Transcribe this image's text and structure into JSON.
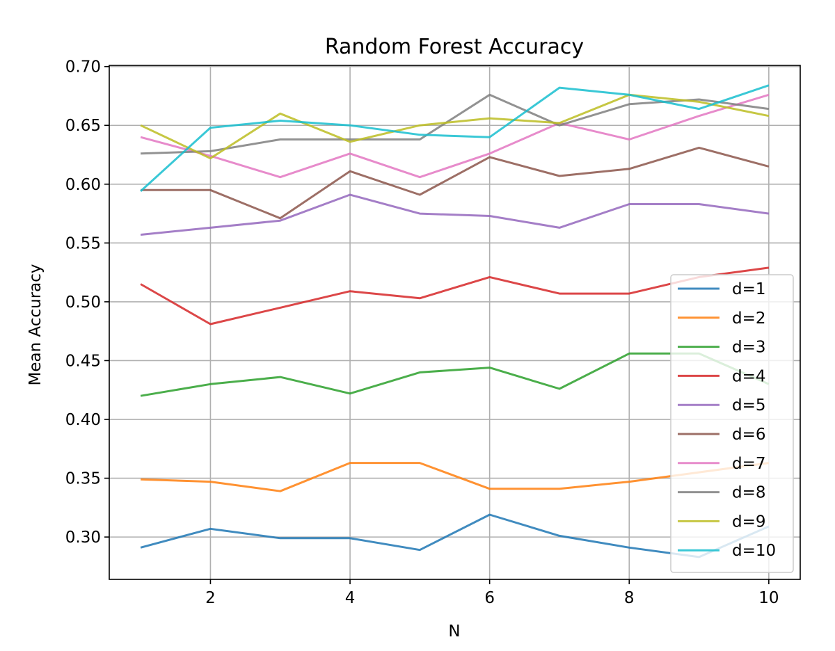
{
  "chart_data": {
    "type": "line",
    "title": "Random Forest Accuracy",
    "xlabel": "N",
    "ylabel": "Mean Accuracy",
    "xlim": [
      0.55,
      10.45
    ],
    "ylim": [
      0.264,
      0.701
    ],
    "xticks": [
      2,
      4,
      6,
      8,
      10
    ],
    "xtick_labels": [
      "2",
      "4",
      "6",
      "8",
      "10"
    ],
    "yticks": [
      0.3,
      0.35,
      0.4,
      0.45,
      0.5,
      0.55,
      0.6,
      0.65,
      0.7
    ],
    "ytick_labels": [
      "0.30",
      "0.35",
      "0.40",
      "0.45",
      "0.50",
      "0.55",
      "0.60",
      "0.65",
      "0.70"
    ],
    "grid": true,
    "legend_position": "lower-right",
    "x": [
      1,
      2,
      3,
      4,
      5,
      6,
      7,
      8,
      9,
      10
    ],
    "series": [
      {
        "name": "d=1",
        "color": "#1f77b4",
        "values": [
          0.291,
          0.307,
          0.299,
          0.299,
          0.289,
          0.319,
          0.301,
          0.291,
          0.283,
          0.309
        ]
      },
      {
        "name": "d=2",
        "color": "#ff7f0e",
        "values": [
          0.349,
          0.347,
          0.339,
          0.363,
          0.363,
          0.341,
          0.341,
          0.347,
          0.355,
          0.363
        ]
      },
      {
        "name": "d=3",
        "color": "#2ca02c",
        "values": [
          0.42,
          0.43,
          0.436,
          0.422,
          0.44,
          0.444,
          0.426,
          0.456,
          0.456,
          0.43
        ]
      },
      {
        "name": "d=4",
        "color": "#d62728",
        "values": [
          0.515,
          0.481,
          0.495,
          0.509,
          0.503,
          0.521,
          0.507,
          0.507,
          0.521,
          0.529
        ]
      },
      {
        "name": "d=5",
        "color": "#9467bd",
        "values": [
          0.557,
          0.563,
          0.569,
          0.591,
          0.575,
          0.573,
          0.563,
          0.583,
          0.583,
          0.575
        ]
      },
      {
        "name": "d=6",
        "color": "#8c564b",
        "values": [
          0.595,
          0.595,
          0.571,
          0.611,
          0.591,
          0.623,
          0.607,
          0.613,
          0.631,
          0.615
        ]
      },
      {
        "name": "d=7",
        "color": "#e377c2",
        "values": [
          0.64,
          0.624,
          0.606,
          0.626,
          0.606,
          0.626,
          0.652,
          0.638,
          0.658,
          0.676
        ]
      },
      {
        "name": "d=8",
        "color": "#7f7f7f",
        "values": [
          0.626,
          0.628,
          0.638,
          0.638,
          0.638,
          0.676,
          0.65,
          0.668,
          0.672,
          0.664
        ]
      },
      {
        "name": "d=9",
        "color": "#bcbd22",
        "values": [
          0.65,
          0.622,
          0.66,
          0.636,
          0.65,
          0.656,
          0.652,
          0.676,
          0.67,
          0.658
        ]
      },
      {
        "name": "d=10",
        "color": "#17becf",
        "values": [
          0.594,
          0.648,
          0.654,
          0.65,
          0.642,
          0.64,
          0.682,
          0.676,
          0.664,
          0.684
        ]
      }
    ]
  }
}
